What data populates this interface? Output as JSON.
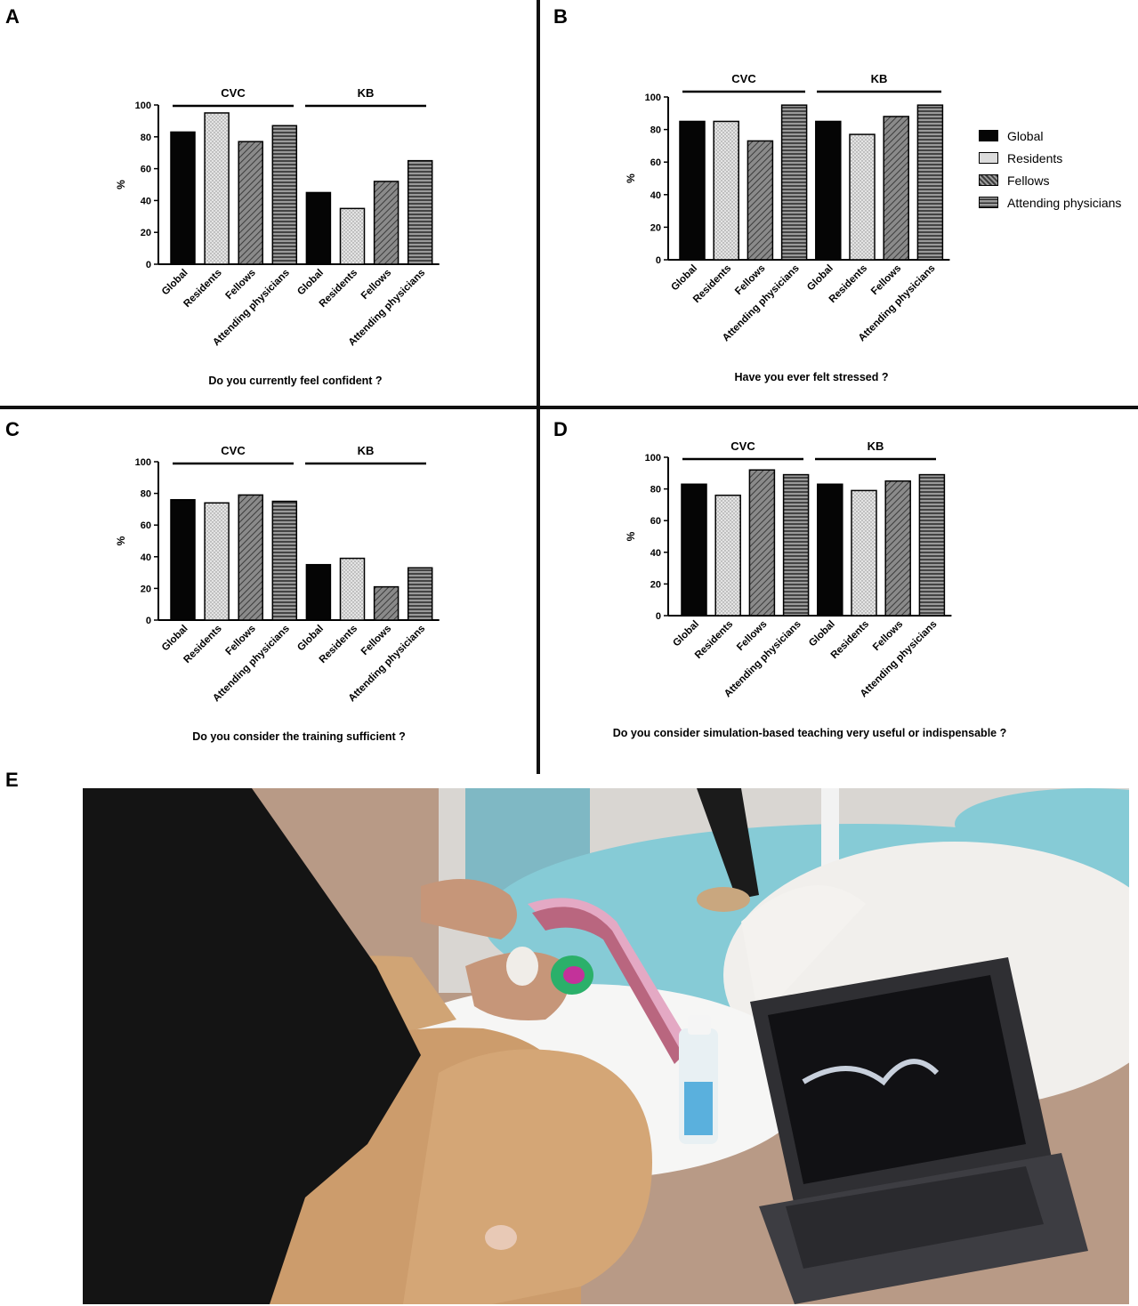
{
  "panel_labels": {
    "a": "A",
    "b": "B",
    "c": "C",
    "d": "D",
    "e": "E"
  },
  "legend": [
    {
      "label": "Global",
      "pattern": "global"
    },
    {
      "label": "Residents",
      "pattern": "residents"
    },
    {
      "label": "Fellows",
      "pattern": "fellows"
    },
    {
      "label": "Attending physicians",
      "pattern": "attending"
    }
  ],
  "colors": {
    "global": "#050505",
    "residents": "#d8d8d8",
    "fellows": "#6f6f6f",
    "attending": "#555555",
    "axis": "#000000"
  },
  "chart_data": [
    {
      "id": "A",
      "type": "bar",
      "title": "Do you currently feel confident ?",
      "ylabel": "%",
      "ylim": [
        0,
        100
      ],
      "yticks": [
        0,
        20,
        40,
        60,
        80,
        100
      ],
      "groups": [
        "CVC",
        "KB"
      ],
      "categories": [
        "Global",
        "Residents",
        "Fellows",
        "Attending physicians",
        "Global",
        "Residents",
        "Fellows",
        "Attending physicians"
      ],
      "values": [
        83,
        95,
        77,
        87,
        45,
        35,
        52,
        65
      ]
    },
    {
      "id": "B",
      "type": "bar",
      "title": "Have you ever felt stressed ?",
      "ylabel": "%",
      "ylim": [
        0,
        100
      ],
      "yticks": [
        0,
        20,
        40,
        60,
        80,
        100
      ],
      "groups": [
        "CVC",
        "KB"
      ],
      "categories": [
        "Global",
        "Residents",
        "Fellows",
        "Attending physicians",
        "Global",
        "Residents",
        "Fellows",
        "Attending physicians"
      ],
      "values": [
        85,
        85,
        73,
        95,
        85,
        77,
        88,
        95
      ]
    },
    {
      "id": "C",
      "type": "bar",
      "title": "Do you consider the training sufficient ?",
      "ylabel": "%",
      "ylim": [
        0,
        100
      ],
      "yticks": [
        0,
        20,
        40,
        60,
        80,
        100
      ],
      "groups": [
        "CVC",
        "KB"
      ],
      "categories": [
        "Global",
        "Residents",
        "Fellows",
        "Attending physicians",
        "Global",
        "Residents",
        "Fellows",
        "Attending physicians"
      ],
      "values": [
        76,
        74,
        79,
        75,
        35,
        39,
        21,
        33
      ]
    },
    {
      "id": "D",
      "type": "bar",
      "title": "Do you consider simulation-based teaching very useful or indispensable ?",
      "ylabel": "%",
      "ylim": [
        0,
        100
      ],
      "yticks": [
        0,
        20,
        40,
        60,
        80,
        100
      ],
      "groups": [
        "CVC",
        "KB"
      ],
      "categories": [
        "Global",
        "Residents",
        "Fellows",
        "Attending physicians",
        "Global",
        "Residents",
        "Fellows",
        "Attending physicians"
      ],
      "values": [
        83,
        76,
        92,
        89,
        83,
        79,
        85,
        89
      ]
    }
  ]
}
